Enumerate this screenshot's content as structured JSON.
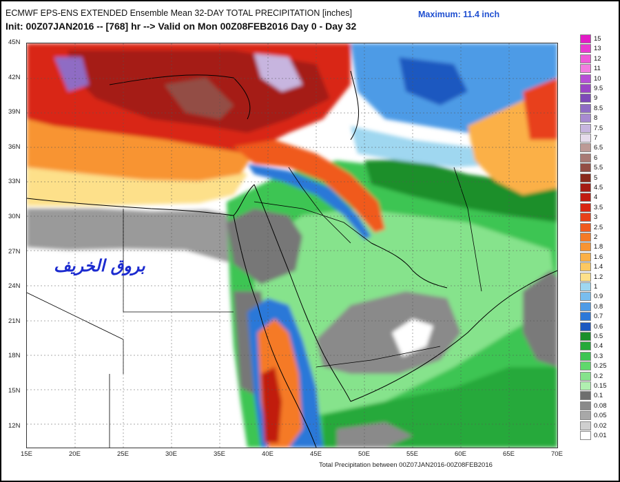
{
  "header": {
    "line1": "ECMWF EPS-ENS EXTENDED Ensemble Mean 32-DAY TOTAL PRECIPITATION [inches]",
    "line2": "Init: 00Z07JAN2016 -- [768] hr --> Valid on Mon 00Z08FEB2016  Day 0 - Day 32",
    "maximum": "Maximum: 11.4 inch"
  },
  "footer": "Total Precipitation between 00Z07JAN2016-00Z08FEB2016",
  "watermark": "بروق الخريف",
  "axes": {
    "lat_labels": [
      "45N",
      "42N",
      "39N",
      "36N",
      "33N",
      "30N",
      "27N",
      "24N",
      "21N",
      "18N",
      "15N",
      "12N"
    ],
    "lon_labels": [
      "15E",
      "20E",
      "25E",
      "30E",
      "35E",
      "40E",
      "45E",
      "50E",
      "55E",
      "60E",
      "65E",
      "70E"
    ]
  },
  "legend": [
    {
      "label": "15",
      "color": "#e21bc6"
    },
    {
      "label": "13",
      "color": "#e83ad0"
    },
    {
      "label": "12",
      "color": "#ee59d8"
    },
    {
      "label": "11",
      "color": "#f27ee0"
    },
    {
      "label": "10",
      "color": "#b64fd6"
    },
    {
      "label": "9.5",
      "color": "#9a46c6"
    },
    {
      "label": "9",
      "color": "#7e4ab8"
    },
    {
      "label": "8.5",
      "color": "#8f6cc4"
    },
    {
      "label": "8",
      "color": "#a78ad0"
    },
    {
      "label": "7.5",
      "color": "#c7b5df"
    },
    {
      "label": "7",
      "color": "#e6dcec"
    },
    {
      "label": "6.5",
      "color": "#bc9a96"
    },
    {
      "label": "6",
      "color": "#a87a74"
    },
    {
      "label": "5.5",
      "color": "#934e44"
    },
    {
      "label": "5",
      "color": "#8a2a1c"
    },
    {
      "label": "4.5",
      "color": "#a51b12"
    },
    {
      "label": "4",
      "color": "#c11b10"
    },
    {
      "label": "3.5",
      "color": "#d92512"
    },
    {
      "label": "3",
      "color": "#e8401a"
    },
    {
      "label": "2.5",
      "color": "#f05a1f"
    },
    {
      "label": "2",
      "color": "#f57a26"
    },
    {
      "label": "1.8",
      "color": "#f89432"
    },
    {
      "label": "1.6",
      "color": "#fbb047"
    },
    {
      "label": "1.4",
      "color": "#fcc862"
    },
    {
      "label": "1.2",
      "color": "#fde08a"
    },
    {
      "label": "1",
      "color": "#9fd7f0"
    },
    {
      "label": "0.9",
      "color": "#79bdee"
    },
    {
      "label": "0.8",
      "color": "#4e9be6"
    },
    {
      "label": "0.7",
      "color": "#2c78d8"
    },
    {
      "label": "0.6",
      "color": "#1d58c0"
    },
    {
      "label": "0.5",
      "color": "#1b8f2a"
    },
    {
      "label": "0.4",
      "color": "#25a93a"
    },
    {
      "label": "0.3",
      "color": "#3dc553"
    },
    {
      "label": "0.25",
      "color": "#5fd86c"
    },
    {
      "label": "0.2",
      "color": "#86e38c"
    },
    {
      "label": "0.15",
      "color": "#b0efb0"
    },
    {
      "label": "0.1",
      "color": "#6e6e6e"
    },
    {
      "label": "0.08",
      "color": "#8a8a8a"
    },
    {
      "label": "0.05",
      "color": "#a8a8a8"
    },
    {
      "label": "0.02",
      "color": "#cfcfcf"
    },
    {
      "label": "0.01",
      "color": "#ffffff"
    }
  ]
}
